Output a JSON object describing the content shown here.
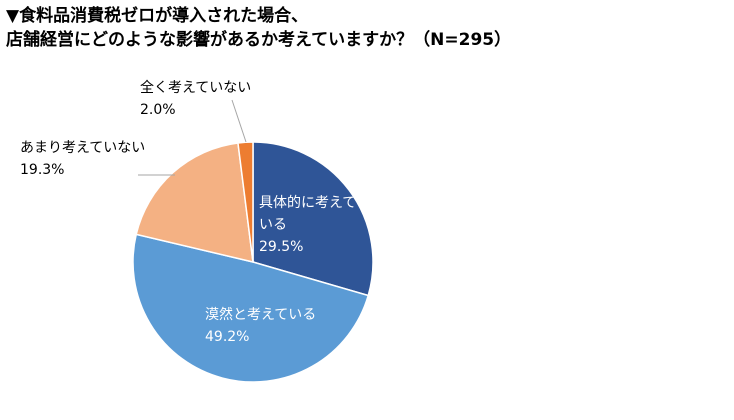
{
  "title_lines": [
    "▼食料品消費税ゼロが導入された場合、",
    "店舗経営にどのような影響があるか考えていますか？（N=295）"
  ],
  "chart_data": {
    "type": "pie",
    "start_angle_deg": 0,
    "direction": "clockwise",
    "categories": [
      "具体的に考えている",
      "漠然と考えている",
      "あまり考えていない",
      "全く考えていない"
    ],
    "values": [
      29.5,
      49.2,
      19.3,
      2.0
    ],
    "unit": "%",
    "colors": [
      "#2f5597",
      "#5b9bd5",
      "#f4b183",
      "#ed7d31"
    ],
    "labels": [
      {
        "lines": [
          "具体的に考えて",
          "いる"
        ],
        "value": "29.5%",
        "inside": true
      },
      {
        "lines": [
          "漠然と考えている"
        ],
        "value": "49.2%",
        "inside": true
      },
      {
        "lines": [
          "あまり考えていない"
        ],
        "value": "19.3%",
        "inside": false
      },
      {
        "lines": [
          "全く考えていない"
        ],
        "value": "2.0%",
        "inside": false
      }
    ]
  }
}
